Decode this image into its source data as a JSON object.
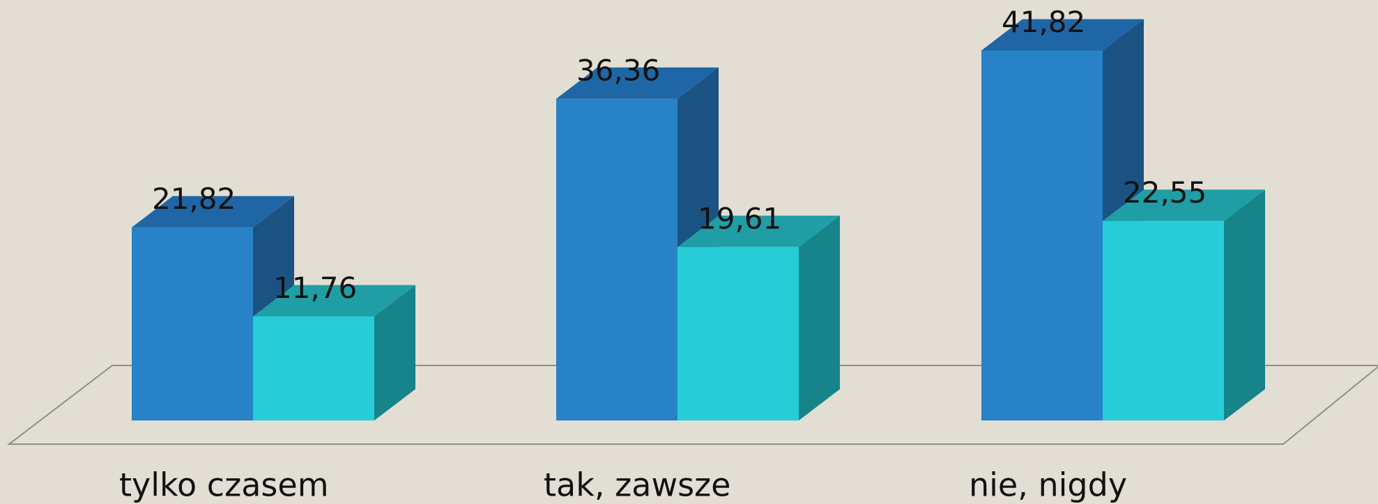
{
  "chart_data": {
    "type": "bar3d",
    "categories": [
      "tylko czasem",
      "tak, zawsze",
      "nie, nigdy"
    ],
    "series": [
      {
        "color": "#2882c8",
        "top_color": "#1f66a6",
        "side_color": "#1a5382",
        "values": [
          21.82,
          36.36,
          41.82
        ],
        "value_labels": [
          "21,82",
          "36,36",
          "41,82"
        ]
      },
      {
        "color": "#26cdd6",
        "top_color": "#1f9ea6",
        "side_color": "#17848a",
        "values": [
          11.76,
          19.61,
          22.55
        ],
        "value_labels": [
          "11,76",
          "19,61",
          "22,55"
        ]
      }
    ]
  }
}
